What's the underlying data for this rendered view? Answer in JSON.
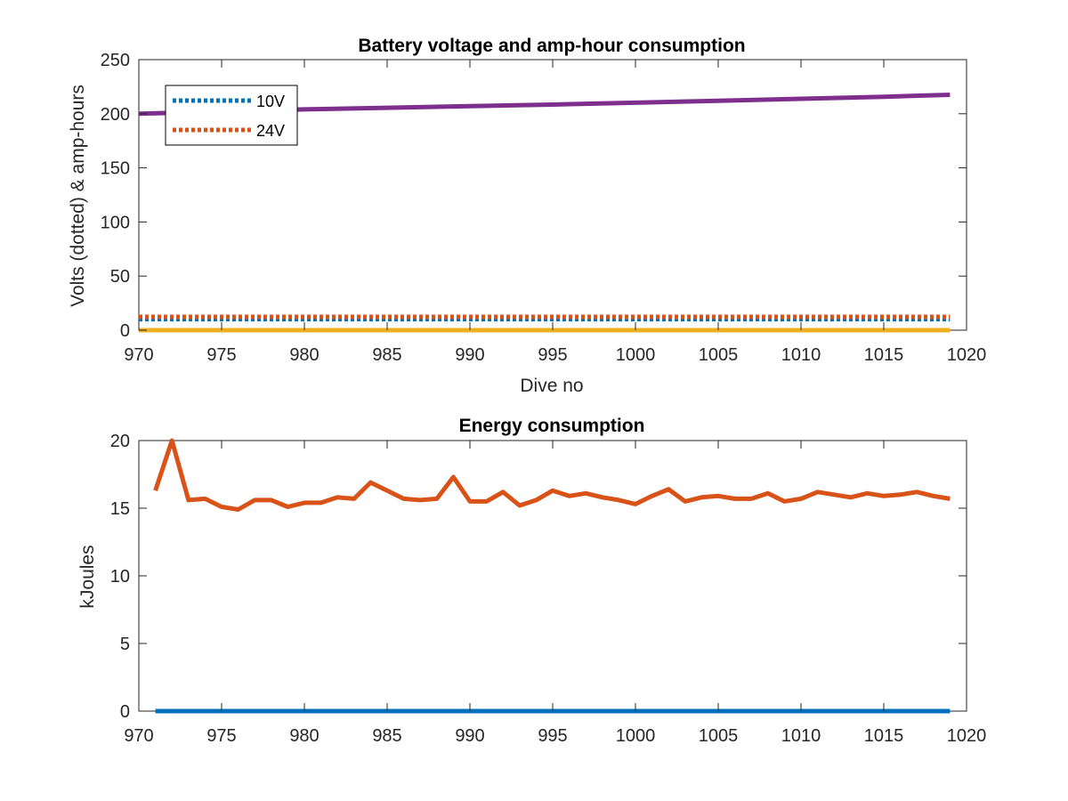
{
  "figure": {
    "background": "#ffffff"
  },
  "chart_data": [
    {
      "type": "line",
      "title": "Battery voltage and amp-hour consumption",
      "xlabel": "Dive no",
      "ylabel": "Volts (dotted) & amp-hours",
      "xlim": [
        970,
        1020
      ],
      "ylim": [
        0,
        250
      ],
      "xticks": [
        970,
        975,
        980,
        985,
        990,
        995,
        1000,
        1005,
        1010,
        1015,
        1020
      ],
      "yticks": [
        0,
        50,
        100,
        150,
        200,
        250
      ],
      "grid": false,
      "legend_location": "top-left",
      "series": [
        {
          "name": "10V",
          "style": "dotted",
          "color": "#0072BD",
          "x": [
            970,
            1019
          ],
          "y": [
            10.2,
            10.2
          ]
        },
        {
          "name": "24V",
          "style": "dotted",
          "color": "#D95319",
          "x": [
            970,
            1019
          ],
          "y": [
            12.3,
            12.3
          ]
        },
        {
          "style": "solid",
          "color": "#7E2F8E",
          "x": [
            970,
            975,
            980,
            985,
            990,
            995,
            1000,
            1005,
            1010,
            1015,
            1019
          ],
          "y": [
            200,
            202,
            204,
            205.5,
            207,
            208.5,
            210.2,
            212,
            213.8,
            215.7,
            217.5
          ]
        },
        {
          "style": "solid",
          "color": "#EDB120",
          "x": [
            970,
            1019
          ],
          "y": [
            0,
            0
          ]
        }
      ]
    },
    {
      "type": "line",
      "title": "Energy consumption",
      "xlabel": "",
      "ylabel": "kJoules",
      "xlim": [
        970,
        1020
      ],
      "ylim": [
        0,
        20
      ],
      "xticks": [
        970,
        975,
        980,
        985,
        990,
        995,
        1000,
        1005,
        1010,
        1015,
        1020
      ],
      "yticks": [
        0,
        5,
        10,
        15,
        20
      ],
      "grid": false,
      "series": [
        {
          "style": "solid",
          "color": "#0072BD",
          "x": [
            971,
            1019
          ],
          "y": [
            0,
            0
          ]
        },
        {
          "style": "solid",
          "color": "#D95319",
          "x": [
            971,
            972,
            973,
            974,
            975,
            976,
            977,
            978,
            979,
            980,
            981,
            982,
            983,
            984,
            985,
            986,
            987,
            988,
            989,
            990,
            991,
            992,
            993,
            994,
            995,
            996,
            997,
            998,
            999,
            1000,
            1001,
            1002,
            1003,
            1004,
            1005,
            1006,
            1007,
            1008,
            1009,
            1010,
            1011,
            1012,
            1013,
            1014,
            1015,
            1016,
            1017,
            1018,
            1019
          ],
          "y": [
            16.3,
            20.0,
            15.6,
            15.7,
            15.1,
            14.9,
            15.6,
            15.6,
            15.1,
            15.4,
            15.4,
            15.8,
            15.7,
            16.9,
            16.3,
            15.7,
            15.6,
            15.7,
            17.3,
            15.5,
            15.5,
            16.2,
            15.2,
            15.6,
            16.3,
            15.9,
            16.1,
            15.8,
            15.6,
            15.3,
            15.9,
            16.4,
            15.5,
            15.8,
            15.9,
            15.7,
            15.7,
            16.1,
            15.5,
            15.7,
            16.2,
            16.0,
            15.8,
            16.1,
            15.9,
            16.0,
            16.2,
            15.9,
            15.7
          ]
        }
      ]
    }
  ]
}
